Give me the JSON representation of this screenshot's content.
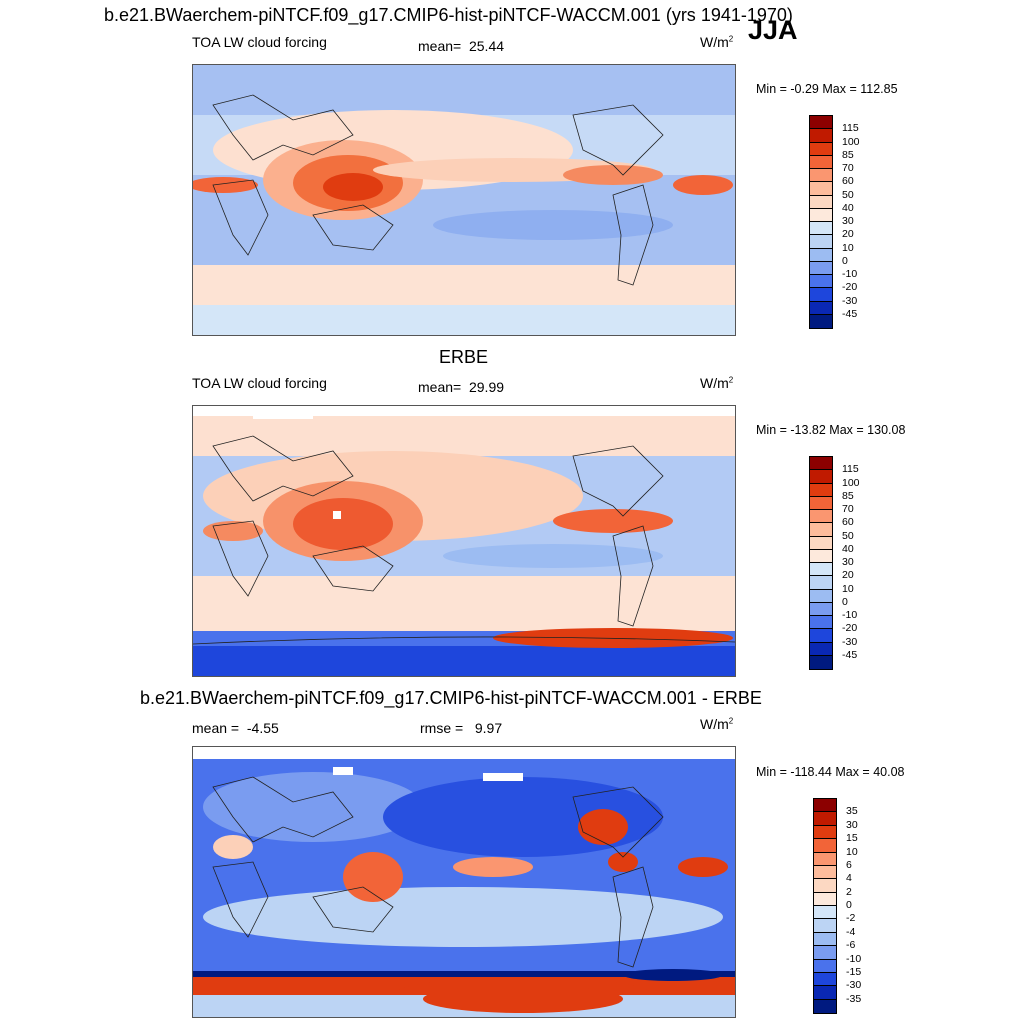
{
  "top_title": "b.e21.BWaerchem-piNTCF.f09_g17.CMIP6-hist-piNTCF-WACCM.001 (yrs 1941-1970)",
  "season": "JJA",
  "panel1": {
    "field": "TOA LW cloud forcing",
    "mean_label": "mean=",
    "mean_value": "25.44",
    "units": "W/m",
    "units_sup": "2",
    "minmax": "Min =  -0.29 Max = 112.85"
  },
  "panel2": {
    "title": "ERBE",
    "field": "TOA LW cloud forcing",
    "mean_label": "mean=",
    "mean_value": "29.99",
    "units": "W/m",
    "units_sup": "2",
    "minmax": "Min = -13.82 Max = 130.08"
  },
  "panel3": {
    "title": "b.e21.BWaerchem-piNTCF.f09_g17.CMIP6-hist-piNTCF-WACCM.001 - ERBE",
    "mean_label": "mean =",
    "mean_value": "-4.55",
    "rmse_label": "rmse =",
    "rmse_value": "9.97",
    "units": "W/m",
    "units_sup": "2",
    "minmax": "Min = -118.44 Max =  40.08"
  },
  "colorbar_abs": {
    "labels": [
      "115",
      "100",
      "85",
      "70",
      "60",
      "50",
      "40",
      "30",
      "20",
      "10",
      "0",
      "-10",
      "-20",
      "-30",
      "-45"
    ],
    "colors": [
      "#8c0000",
      "#c01a00",
      "#e03c10",
      "#f26438",
      "#fa9670",
      "#fdbc9c",
      "#fcd8c2",
      "#fde9dc",
      "#d4e6f8",
      "#bcd4f4",
      "#9cbcf2",
      "#7a9cf0",
      "#4a72ec",
      "#1e46dc",
      "#0a28b4",
      "#001a80"
    ]
  },
  "colorbar_diff": {
    "labels": [
      "35",
      "30",
      "15",
      "10",
      "6",
      "4",
      "2",
      "0",
      "-2",
      "-4",
      "-6",
      "-10",
      "-15",
      "-30",
      "-35"
    ],
    "colors": [
      "#8c0000",
      "#c01a00",
      "#e03c10",
      "#f26438",
      "#fa9670",
      "#fdbc9c",
      "#fcd8c2",
      "#fde9dc",
      "#d4e6f8",
      "#bcd4f4",
      "#9cbcf2",
      "#7a9cf0",
      "#4a72ec",
      "#1e46dc",
      "#0a28b4",
      "#001a80"
    ]
  }
}
